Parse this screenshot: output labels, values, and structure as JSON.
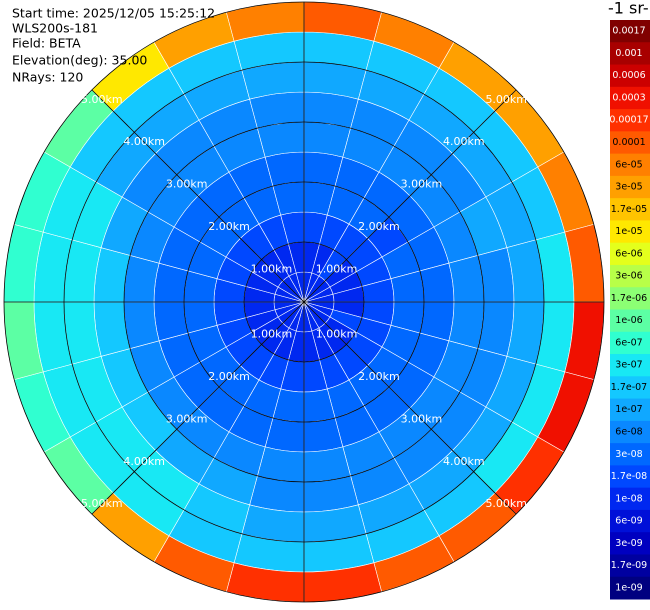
{
  "chart_data": {
    "type": "polar_heatmap",
    "info": {
      "start_time": "Start time: 2025/12/05 15:25:12",
      "site": "WLS200s-181",
      "field": "Field: BETA",
      "elevation": "Elevation(deg): 35.00",
      "nrays": "NRays: 120"
    },
    "colorbar": {
      "title": "-1 sr-",
      "levels": [
        {
          "value": 0.0017,
          "label": "0.0017"
        },
        {
          "value": 0.001,
          "label": "0.001"
        },
        {
          "value": 0.0006,
          "label": "0.0006"
        },
        {
          "value": 0.0003,
          "label": "0.0003"
        },
        {
          "value": 0.00017,
          "label": "0.00017"
        },
        {
          "value": 0.0001,
          "label": "0.0001"
        },
        {
          "value": 6e-05,
          "label": "6e-05"
        },
        {
          "value": 3e-05,
          "label": "3e-05"
        },
        {
          "value": 1.7e-05,
          "label": "1.7e-05"
        },
        {
          "value": 1e-05,
          "label": "1e-05"
        },
        {
          "value": 6e-06,
          "label": "6e-06"
        },
        {
          "value": 3e-06,
          "label": "3e-06"
        },
        {
          "value": 1.7e-06,
          "label": "1.7e-06"
        },
        {
          "value": 1e-06,
          "label": "1e-06"
        },
        {
          "value": 6e-07,
          "label": "6e-07"
        },
        {
          "value": 3e-07,
          "label": "3e-07"
        },
        {
          "value": 1.7e-07,
          "label": "1.7e-07"
        },
        {
          "value": 1e-07,
          "label": "1e-07"
        },
        {
          "value": 6e-08,
          "label": "6e-08"
        },
        {
          "value": 3e-08,
          "label": "3e-08"
        },
        {
          "value": 1.7e-08,
          "label": "1.7e-08"
        },
        {
          "value": 1e-08,
          "label": "1e-08"
        },
        {
          "value": 6e-09,
          "label": "6e-09"
        },
        {
          "value": 3e-09,
          "label": "3e-09"
        },
        {
          "value": 1.7e-09,
          "label": "1.7e-09"
        },
        {
          "value": 1e-09,
          "label": "1e-09"
        }
      ],
      "colors": [
        "#800000",
        "#a80000",
        "#cc0000",
        "#f01000",
        "#ff3000",
        "#ff5a00",
        "#ff8000",
        "#ffa000",
        "#ffc400",
        "#ffe800",
        "#e4ff1c",
        "#b8ff48",
        "#8cff74",
        "#5cffa4",
        "#30ffd0",
        "#18e8f4",
        "#14c8ff",
        "#10a8ff",
        "#0a88ff",
        "#0068ff",
        "#0048ff",
        "#0028f0",
        "#0010d8",
        "#0000c0",
        "#0000a0",
        "#000080"
      ]
    },
    "rlim": [
      0,
      5
    ],
    "rticks": [
      {
        "value": 1,
        "label": "1.00km"
      },
      {
        "value": 2,
        "label": "2.00km"
      },
      {
        "value": 3,
        "label": "3.00km"
      },
      {
        "value": 4,
        "label": "4.00km"
      },
      {
        "value": 5,
        "label": "5.00km"
      }
    ],
    "range_edges_km": [
      0,
      0.5,
      1,
      1.5,
      2,
      2.5,
      3,
      3.5,
      4,
      4.5,
      5
    ],
    "azimuth_edges_deg": [
      0,
      15,
      30,
      45,
      60,
      75,
      90,
      105,
      120,
      135,
      150,
      165,
      180,
      195,
      210,
      225,
      240,
      255,
      270,
      285,
      300,
      315,
      330,
      345,
      360
    ],
    "values": [
      [
        1e-08,
        1e-08,
        1.7e-08,
        3e-08,
        3e-08,
        6e-08,
        6e-08,
        1e-07,
        1.7e-07,
        0.0001
      ],
      [
        1e-08,
        1e-08,
        1.7e-08,
        3e-08,
        3e-08,
        6e-08,
        6e-08,
        1e-07,
        1.7e-07,
        6e-05
      ],
      [
        1e-08,
        1.7e-08,
        1.7e-08,
        3e-08,
        3e-08,
        6e-08,
        6e-08,
        1e-07,
        1.7e-07,
        3e-05
      ],
      [
        1e-08,
        1e-08,
        1.7e-08,
        1.7e-08,
        3e-08,
        6e-08,
        6e-08,
        1e-07,
        1.7e-07,
        3e-05
      ],
      [
        1e-08,
        1e-08,
        1.7e-08,
        3e-08,
        3e-08,
        6e-08,
        1e-07,
        1e-07,
        1.7e-07,
        6e-05
      ],
      [
        1e-08,
        1e-08,
        1.7e-08,
        3e-08,
        3e-08,
        6e-08,
        6e-08,
        1e-07,
        3e-07,
        0.0001
      ],
      [
        1e-08,
        1e-08,
        1.7e-08,
        3e-08,
        3e-08,
        6e-08,
        6e-08,
        1e-07,
        3e-07,
        0.0003
      ],
      [
        1e-08,
        1.7e-08,
        1.7e-08,
        3e-08,
        3e-08,
        6e-08,
        6e-08,
        1e-07,
        3e-07,
        0.0003
      ],
      [
        1e-08,
        1e-08,
        1.7e-08,
        3e-08,
        3e-08,
        6e-08,
        6e-08,
        1e-07,
        3e-07,
        0.00017
      ],
      [
        1e-08,
        1e-08,
        1.7e-08,
        3e-08,
        3e-08,
        6e-08,
        6e-08,
        1e-07,
        1.7e-07,
        0.0001
      ],
      [
        1e-08,
        1e-08,
        1.7e-08,
        3e-08,
        3e-08,
        6e-08,
        6e-08,
        1e-07,
        1.7e-07,
        0.0001
      ],
      [
        1e-08,
        1e-08,
        1.7e-08,
        3e-08,
        3e-08,
        6e-08,
        6e-08,
        1e-07,
        1.7e-07,
        0.00017
      ],
      [
        1e-08,
        1e-08,
        1.7e-08,
        3e-08,
        3e-08,
        6e-08,
        6e-08,
        1e-07,
        1.7e-07,
        0.00017
      ],
      [
        1e-08,
        1e-08,
        1.7e-08,
        3e-08,
        3e-08,
        6e-08,
        1e-07,
        1.7e-07,
        1.7e-07,
        0.0001
      ],
      [
        1e-08,
        1e-08,
        1.7e-08,
        3e-08,
        3e-08,
        6e-08,
        1e-07,
        3e-07,
        3e-07,
        3e-05
      ],
      [
        1e-08,
        1e-08,
        1.7e-08,
        3e-08,
        3e-08,
        6e-08,
        1.7e-07,
        3e-07,
        3e-07,
        1e-06
      ],
      [
        1e-08,
        1e-08,
        1.7e-08,
        3e-08,
        3e-08,
        6e-08,
        1.7e-07,
        3e-07,
        3e-07,
        6e-07
      ],
      [
        1e-08,
        1e-08,
        1.7e-08,
        3e-08,
        3e-08,
        6e-08,
        1.7e-07,
        3e-07,
        3e-07,
        1e-06
      ],
      [
        1e-08,
        1e-08,
        1.7e-08,
        3e-08,
        3e-08,
        6e-08,
        1.7e-07,
        3e-07,
        3e-07,
        6e-07
      ],
      [
        1e-08,
        1e-08,
        1.7e-08,
        3e-08,
        3e-08,
        6e-08,
        1e-07,
        3e-07,
        3e-07,
        6e-07
      ],
      [
        1e-08,
        1e-08,
        1.7e-08,
        3e-08,
        3e-08,
        6e-08,
        6e-08,
        1e-07,
        1.7e-07,
        1e-06
      ],
      [
        1e-08,
        1e-08,
        1.7e-08,
        3e-08,
        3e-08,
        6e-08,
        6e-08,
        1e-07,
        1.7e-07,
        1e-05
      ],
      [
        1e-08,
        1e-08,
        1.7e-08,
        3e-08,
        3e-08,
        6e-08,
        6e-08,
        1e-07,
        1.7e-07,
        3e-05
      ],
      [
        1e-08,
        1e-08,
        1.7e-08,
        3e-08,
        3e-08,
        6e-08,
        6e-08,
        1e-07,
        1.7e-07,
        6e-05
      ]
    ]
  }
}
